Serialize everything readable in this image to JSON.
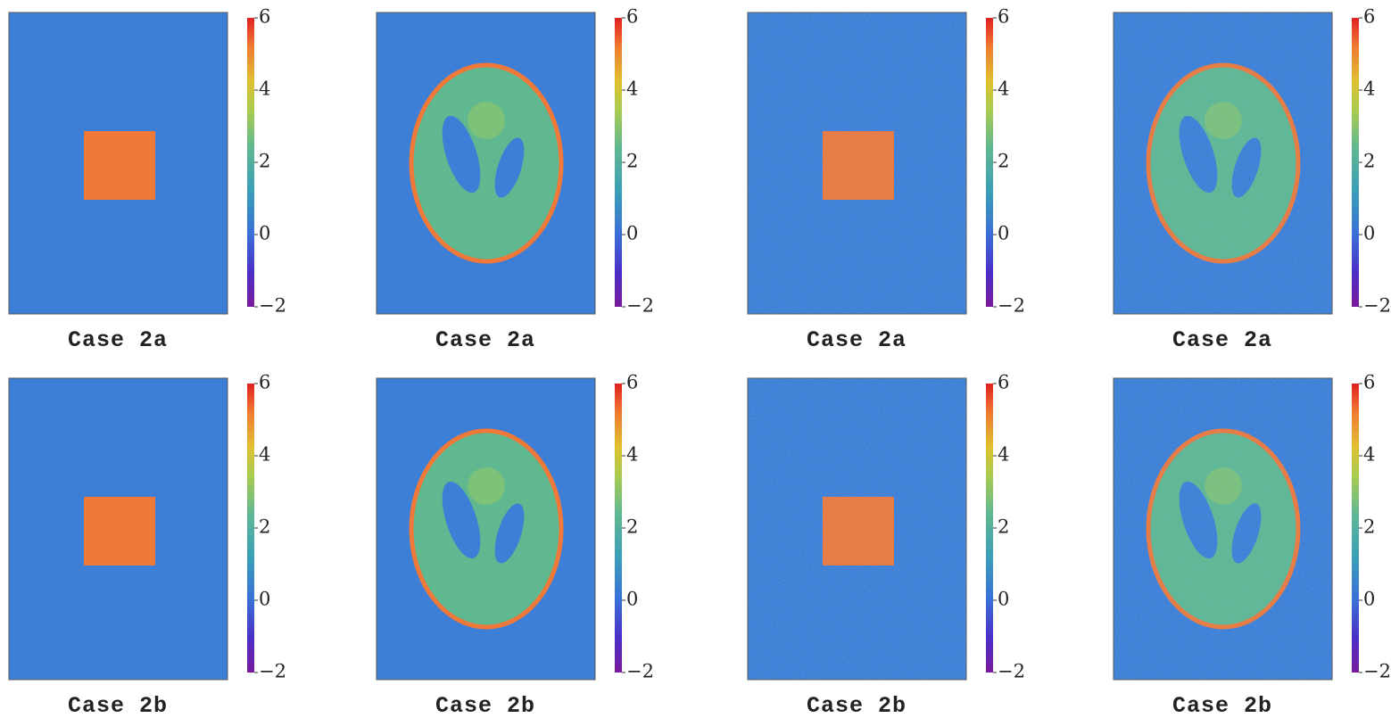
{
  "panels": [
    {
      "caption": "Case 2a",
      "colorbar": {
        "lim": [
          -2,
          6
        ],
        "ticks": [
          6,
          4,
          2,
          0,
          {
            "value": -2,
            "label": "−2"
          }
        ]
      }
    },
    {
      "caption": "Case 2a",
      "colorbar": {
        "lim": [
          -2,
          6
        ],
        "ticks": [
          6,
          4,
          2,
          0,
          {
            "value": -2,
            "label": "−2"
          }
        ]
      }
    },
    {
      "caption": "Case 2a",
      "colorbar": {
        "lim": [
          -2,
          6
        ],
        "ticks": [
          6,
          4,
          2,
          0,
          {
            "value": -2,
            "label": "−2"
          }
        ]
      }
    },
    {
      "caption": "Case 2a",
      "colorbar": {
        "lim": [
          -2,
          6
        ],
        "ticks": [
          6,
          4,
          2,
          0,
          {
            "value": -2,
            "label": "−2"
          }
        ]
      }
    },
    {
      "caption": "Case 2b",
      "colorbar": {
        "lim": [
          -2,
          6
        ],
        "ticks": [
          6,
          4,
          2,
          0,
          {
            "value": -2,
            "label": "−2"
          }
        ]
      }
    },
    {
      "caption": "Case 2b",
      "colorbar": {
        "lim": [
          -2,
          6
        ],
        "ticks": [
          6,
          4,
          2,
          0,
          {
            "value": -2,
            "label": "−2"
          }
        ]
      }
    },
    {
      "caption": "Case 2b",
      "colorbar": {
        "lim": [
          -2,
          6
        ],
        "ticks": [
          6,
          4,
          2,
          0,
          {
            "value": -2,
            "label": "−2"
          }
        ]
      }
    },
    {
      "caption": "Case 2b",
      "colorbar": {
        "lim": [
          -2,
          6
        ],
        "ticks": [
          6,
          4,
          2,
          0,
          {
            "value": -2,
            "label": "−2"
          }
        ]
      }
    }
  ]
}
